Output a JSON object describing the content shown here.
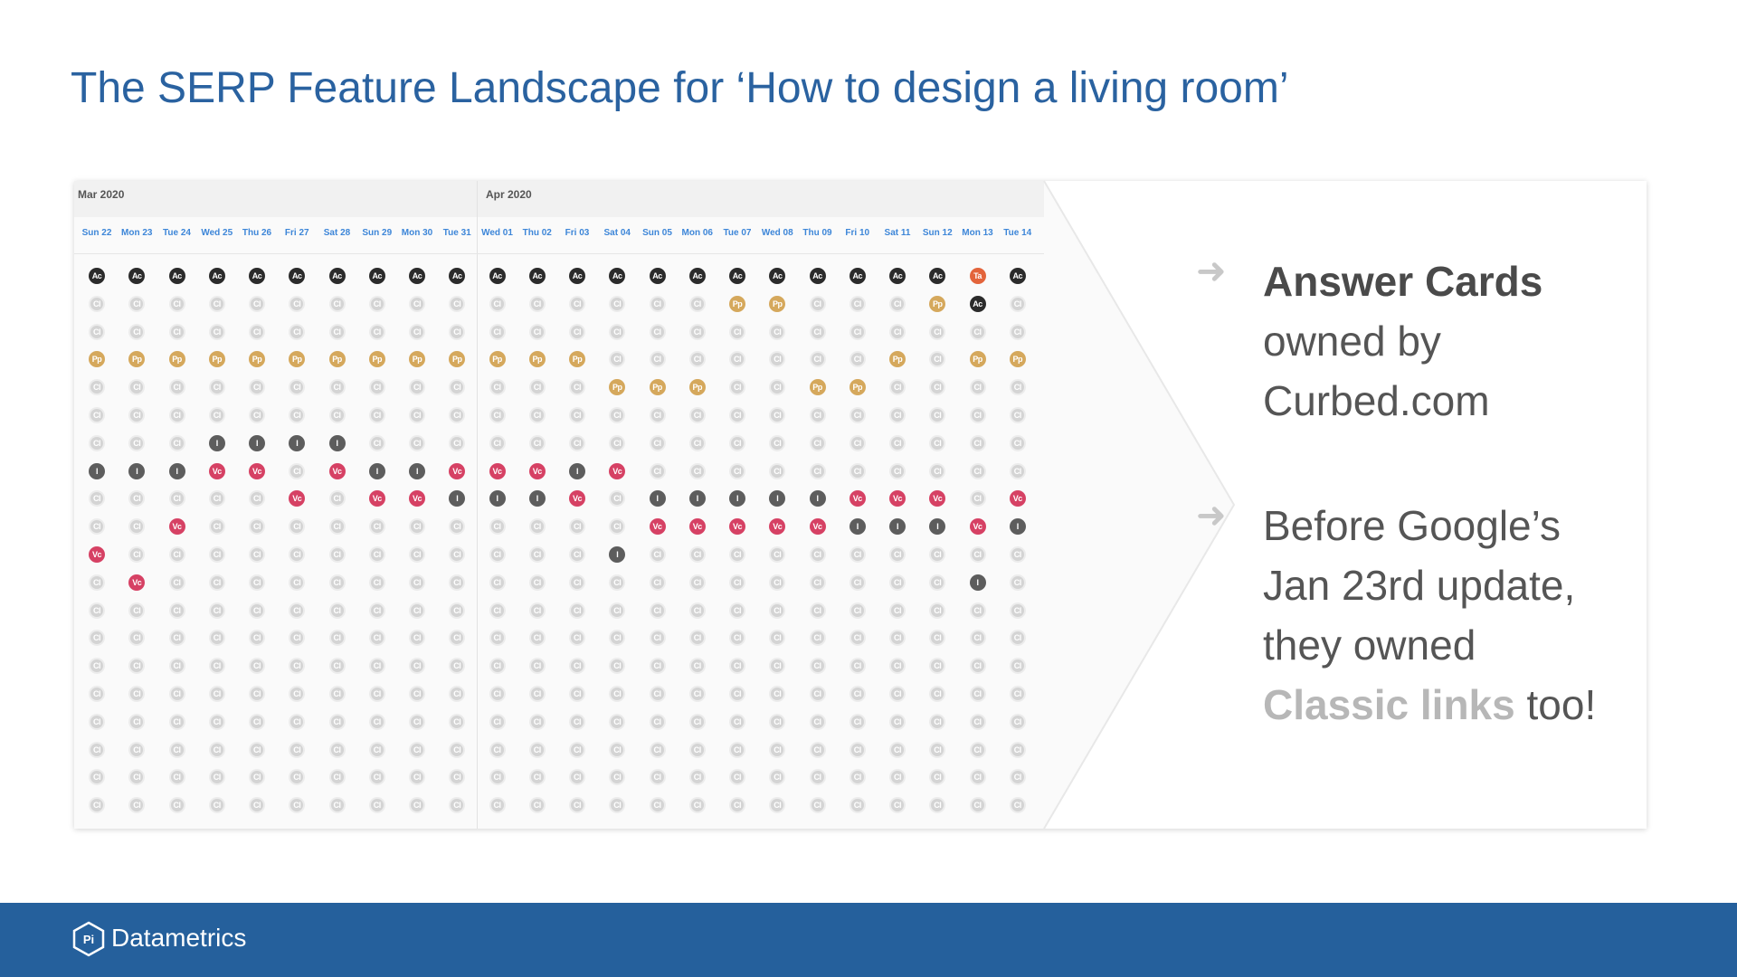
{
  "title": "The SERP Feature Landscape for ‘How to design a living room’",
  "grid": {
    "months": [
      {
        "label": "Mar 2020"
      },
      {
        "label": "Apr 2020"
      }
    ],
    "days": [
      "Sun 22",
      "Mon 23",
      "Tue 24",
      "Wed 25",
      "Thu 26",
      "Fri 27",
      "Sat 28",
      "Sun 29",
      "Mon 30",
      "Tue 31",
      "Wed 01",
      "Thu 02",
      "Fri 03",
      "Sat 04",
      "Sun 05",
      "Mon 06",
      "Tue 07",
      "Wed 08",
      "Thu 09",
      "Fri 10",
      "Sat 11",
      "Sun 12",
      "Mon 13",
      "Tue 14"
    ],
    "rows": [
      [
        "Ac",
        "Ac",
        "Ac",
        "Ac",
        "Ac",
        "Ac",
        "Ac",
        "Ac",
        "Ac",
        "Ac",
        "Ac",
        "Ac",
        "Ac",
        "Ac",
        "Ac",
        "Ac",
        "Ac",
        "Ac",
        "Ac",
        "Ac",
        "Ac",
        "Ac",
        "Ta",
        "Ac"
      ],
      [
        "Cl",
        "Cl",
        "Cl",
        "Cl",
        "Cl",
        "Cl",
        "Cl",
        "Cl",
        "Cl",
        "Cl",
        "Cl",
        "Cl",
        "Cl",
        "Cl",
        "Cl",
        "Cl",
        "Pp",
        "Pp",
        "Cl",
        "Cl",
        "Cl",
        "Pp",
        "Ac",
        "Cl"
      ],
      [
        "Cl",
        "Cl",
        "Cl",
        "Cl",
        "Cl",
        "Cl",
        "Cl",
        "Cl",
        "Cl",
        "Cl",
        "Cl",
        "Cl",
        "Cl",
        "Cl",
        "Cl",
        "Cl",
        "Cl",
        "Cl",
        "Cl",
        "Cl",
        "Cl",
        "Cl",
        "Cl",
        "Cl"
      ],
      [
        "Pp",
        "Pp",
        "Pp",
        "Pp",
        "Pp",
        "Pp",
        "Pp",
        "Pp",
        "Pp",
        "Pp",
        "Pp",
        "Pp",
        "Pp",
        "Cl",
        "Cl",
        "Cl",
        "Cl",
        "Cl",
        "Cl",
        "Cl",
        "Pp",
        "Cl",
        "Pp",
        "Pp"
      ],
      [
        "Cl",
        "Cl",
        "Cl",
        "Cl",
        "Cl",
        "Cl",
        "Cl",
        "Cl",
        "Cl",
        "Cl",
        "Cl",
        "Cl",
        "Cl",
        "Pp",
        "Pp",
        "Pp",
        "Cl",
        "Cl",
        "Pp",
        "Pp",
        "Cl",
        "Cl",
        "Cl",
        "Cl"
      ],
      [
        "Cl",
        "Cl",
        "Cl",
        "Cl",
        "Cl",
        "Cl",
        "Cl",
        "Cl",
        "Cl",
        "Cl",
        "Cl",
        "Cl",
        "Cl",
        "Cl",
        "Cl",
        "Cl",
        "Cl",
        "Cl",
        "Cl",
        "Cl",
        "Cl",
        "Cl",
        "Cl",
        "Cl"
      ],
      [
        "Cl",
        "Cl",
        "Cl",
        "I",
        "I",
        "I",
        "I",
        "Cl",
        "Cl",
        "Cl",
        "Cl",
        "Cl",
        "Cl",
        "Cl",
        "Cl",
        "Cl",
        "Cl",
        "Cl",
        "Cl",
        "Cl",
        "Cl",
        "Cl",
        "Cl",
        "Cl"
      ],
      [
        "I",
        "I",
        "I",
        "Vc",
        "Vc",
        "Cl",
        "Vc",
        "I",
        "I",
        "Vc",
        "Vc",
        "Vc",
        "I",
        "Vc",
        "Cl",
        "Cl",
        "Cl",
        "Cl",
        "Cl",
        "Cl",
        "Cl",
        "Cl",
        "Cl",
        "Cl"
      ],
      [
        "Cl",
        "Cl",
        "Cl",
        "Cl",
        "Cl",
        "Vc",
        "Cl",
        "Vc",
        "Vc",
        "I",
        "I",
        "I",
        "Vc",
        "Cl",
        "I",
        "I",
        "I",
        "I",
        "I",
        "Vc",
        "Vc",
        "Vc",
        "Cl",
        "Vc"
      ],
      [
        "Cl",
        "Cl",
        "Vc",
        "Cl",
        "Cl",
        "Cl",
        "Cl",
        "Cl",
        "Cl",
        "Cl",
        "Cl",
        "Cl",
        "Cl",
        "Cl",
        "Vc",
        "Vc",
        "Vc",
        "Vc",
        "Vc",
        "I",
        "I",
        "I",
        "Vc",
        "I"
      ],
      [
        "Vc",
        "Cl",
        "Cl",
        "Cl",
        "Cl",
        "Cl",
        "Cl",
        "Cl",
        "Cl",
        "Cl",
        "Cl",
        "Cl",
        "Cl",
        "I",
        "Cl",
        "Cl",
        "Cl",
        "Cl",
        "Cl",
        "Cl",
        "Cl",
        "Cl",
        "Cl",
        "Cl"
      ],
      [
        "Cl",
        "Vc",
        "Cl",
        "Cl",
        "Cl",
        "Cl",
        "Cl",
        "Cl",
        "Cl",
        "Cl",
        "Cl",
        "Cl",
        "Cl",
        "Cl",
        "Cl",
        "Cl",
        "Cl",
        "Cl",
        "Cl",
        "Cl",
        "Cl",
        "Cl",
        "I",
        "Cl"
      ],
      [
        "Cl",
        "Cl",
        "Cl",
        "Cl",
        "Cl",
        "Cl",
        "Cl",
        "Cl",
        "Cl",
        "Cl",
        "Cl",
        "Cl",
        "Cl",
        "Cl",
        "Cl",
        "Cl",
        "Cl",
        "Cl",
        "Cl",
        "Cl",
        "Cl",
        "Cl",
        "Cl",
        "Cl"
      ],
      [
        "Cl",
        "Cl",
        "Cl",
        "Cl",
        "Cl",
        "Cl",
        "Cl",
        "Cl",
        "Cl",
        "Cl",
        "Cl",
        "Cl",
        "Cl",
        "Cl",
        "Cl",
        "Cl",
        "Cl",
        "Cl",
        "Cl",
        "Cl",
        "Cl",
        "Cl",
        "Cl",
        "Cl"
      ],
      [
        "Cl",
        "Cl",
        "Cl",
        "Cl",
        "Cl",
        "Cl",
        "Cl",
        "Cl",
        "Cl",
        "Cl",
        "Cl",
        "Cl",
        "Cl",
        "Cl",
        "Cl",
        "Cl",
        "Cl",
        "Cl",
        "Cl",
        "Cl",
        "Cl",
        "Cl",
        "Cl",
        "Cl"
      ],
      [
        "Cl",
        "Cl",
        "Cl",
        "Cl",
        "Cl",
        "Cl",
        "Cl",
        "Cl",
        "Cl",
        "Cl",
        "Cl",
        "Cl",
        "Cl",
        "Cl",
        "Cl",
        "Cl",
        "Cl",
        "Cl",
        "Cl",
        "Cl",
        "Cl",
        "Cl",
        "Cl",
        "Cl"
      ],
      [
        "Cl",
        "Cl",
        "Cl",
        "Cl",
        "Cl",
        "Cl",
        "Cl",
        "Cl",
        "Cl",
        "Cl",
        "Cl",
        "Cl",
        "Cl",
        "Cl",
        "Cl",
        "Cl",
        "Cl",
        "Cl",
        "Cl",
        "Cl",
        "Cl",
        "Cl",
        "Cl",
        "Cl"
      ],
      [
        "Cl",
        "Cl",
        "Cl",
        "Cl",
        "Cl",
        "Cl",
        "Cl",
        "Cl",
        "Cl",
        "Cl",
        "Cl",
        "Cl",
        "Cl",
        "Cl",
        "Cl",
        "Cl",
        "Cl",
        "Cl",
        "Cl",
        "Cl",
        "Cl",
        "Cl",
        "Cl",
        "Cl"
      ],
      [
        "Cl",
        "Cl",
        "Cl",
        "Cl",
        "Cl",
        "Cl",
        "Cl",
        "Cl",
        "Cl",
        "Cl",
        "Cl",
        "Cl",
        "Cl",
        "Cl",
        "Cl",
        "Cl",
        "Cl",
        "Cl",
        "Cl",
        "Cl",
        "Cl",
        "Cl",
        "Cl",
        "Cl"
      ],
      [
        "Cl",
        "Cl",
        "Cl",
        "Cl",
        "Cl",
        "Cl",
        "Cl",
        "Cl",
        "Cl",
        "Cl",
        "Cl",
        "Cl",
        "Cl",
        "Cl",
        "Cl",
        "Cl",
        "Cl",
        "Cl",
        "Cl",
        "Cl",
        "Cl",
        "Cl",
        "Cl",
        "Cl"
      ]
    ],
    "feature_colors": {
      "Ac": "#2b2b2b",
      "Cl": "#d4d4d4",
      "Pp": "#d5a85c",
      "Vc": "#d64164",
      "I": "#5d5d5d",
      "Ta": "#e3643b"
    }
  },
  "points": [
    {
      "bold": "Answer Cards",
      "rest": " owned by Curbed.com"
    },
    {
      "lead": "Before Google’s Jan 23rd update, they owned ",
      "bold": "Classic links",
      "rest": " too!"
    }
  ],
  "footer": {
    "brand": "Datametrics",
    "logo_text": "Pi"
  },
  "colors": {
    "title": "#2a62a0",
    "footer_bg": "#25609c"
  }
}
